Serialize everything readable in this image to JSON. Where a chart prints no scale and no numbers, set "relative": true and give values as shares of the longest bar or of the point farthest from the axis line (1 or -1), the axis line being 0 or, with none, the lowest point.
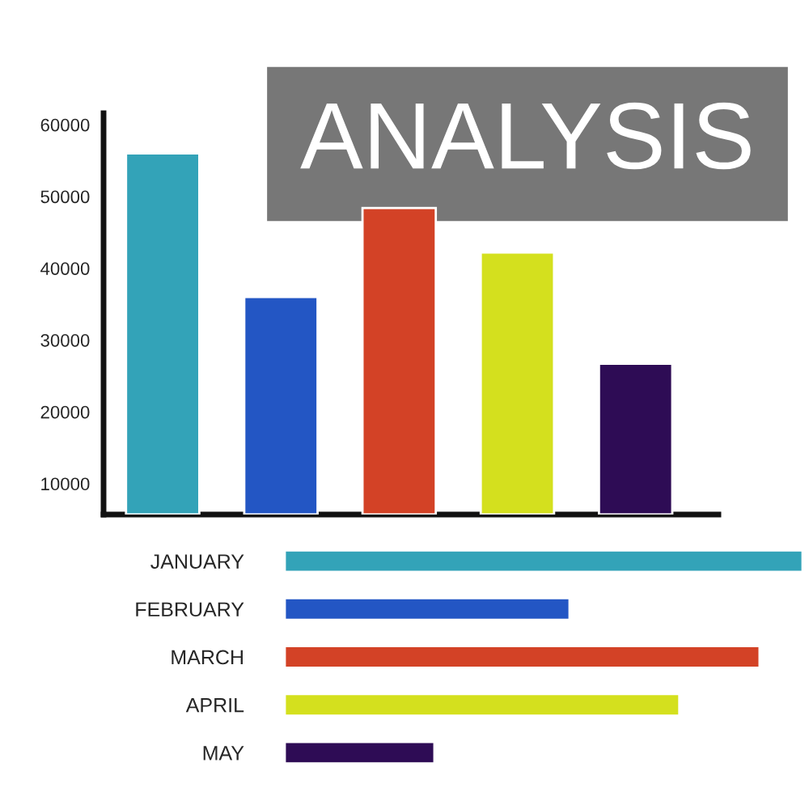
{
  "chart_data": [
    {
      "type": "bar",
      "title": "ANALYSIS",
      "categories": [
        null,
        null,
        null,
        null,
        null
      ],
      "values": [
        56000,
        36000,
        48400,
        42200,
        26700
      ],
      "colors": [
        "#33a3b8",
        "#2356c4",
        "#d34226",
        "#d4e01e",
        "#2e0c55"
      ],
      "ylim": [
        5700,
        61600
      ],
      "yticks": [
        10000,
        20000,
        30000,
        40000,
        50000,
        60000
      ],
      "tick_labels": "y",
      "grid": false
    },
    {
      "type": "bar",
      "orientation": "horizontal",
      "relative": true,
      "categories": [
        "JANUARY",
        "FEBRUARY",
        "MARCH",
        "APRIL",
        "MAY"
      ],
      "values": [
        1,
        0.55,
        0.917,
        0.762,
        0.289
      ],
      "colors": [
        "#33a3b8",
        "#2356c4",
        "#d34226",
        "#d4e01e",
        "#2e0c55"
      ],
      "grid": false
    }
  ]
}
